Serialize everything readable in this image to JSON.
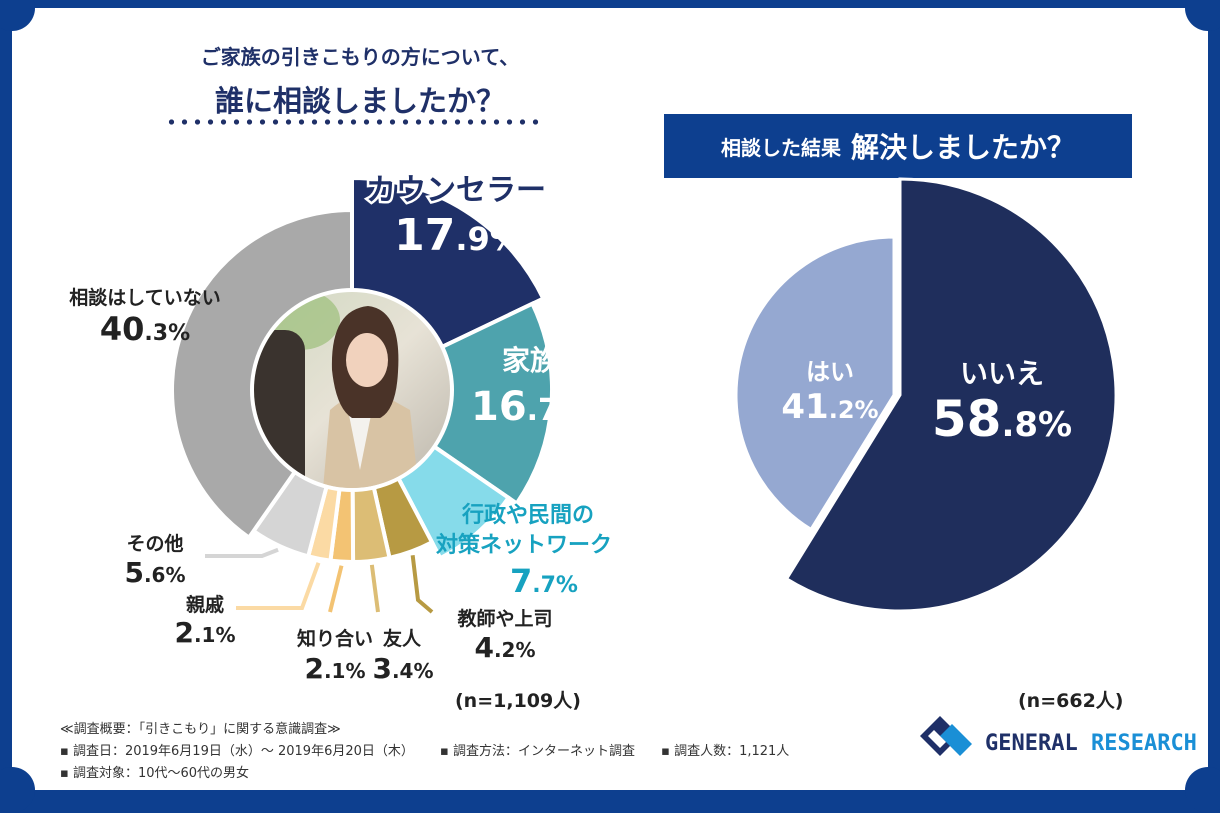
{
  "left_title": {
    "line1": "ご家族の引きこもりの方について、",
    "line2": "誰に相談しましたか？"
  },
  "right_title": {
    "small": "相談した結果",
    "big": "解決しましたか？"
  },
  "chart_data": [
    {
      "type": "pie",
      "style": "donut",
      "title": "ご家族の引きこもりの方について、誰に相談しましたか？",
      "n_label": "(n=1,109人)",
      "slices": [
        {
          "key": "counselor",
          "label": "カウンセラー",
          "value": 17.9,
          "value_label": "17.9%",
          "color": "#1f3068"
        },
        {
          "key": "family",
          "label": "家族",
          "value": 16.7,
          "value_label": "16.7%",
          "color": "#4ea3ad"
        },
        {
          "key": "gov",
          "label": "行政や民間の対策ネットワーク",
          "label_lines": [
            "行政や民間の",
            "対策ネットワーク"
          ],
          "value": 7.7,
          "value_label": "7.7%",
          "color": "#86dbea"
        },
        {
          "key": "teacher",
          "label": "教師や上司",
          "value": 4.2,
          "value_label": "4.2%",
          "color": "#b79a43"
        },
        {
          "key": "friend",
          "label": "友人",
          "value": 3.4,
          "value_label": "3.4%",
          "color": "#dcbd75"
        },
        {
          "key": "acquaint",
          "label": "知り合い",
          "value": 2.1,
          "value_label": "2.1%",
          "color": "#f3c373"
        },
        {
          "key": "relative",
          "label": "親戚",
          "value": 2.1,
          "value_label": "2.1%",
          "color": "#fbdaa4"
        },
        {
          "key": "other",
          "label": "その他",
          "value": 5.6,
          "value_label": "5.6%",
          "color": "#d5d5d5"
        },
        {
          "key": "none",
          "label": "相談はしていない",
          "value": 40.3,
          "value_label": "40.3%",
          "color": "#a9a9a9"
        }
      ]
    },
    {
      "type": "pie",
      "title": "相談した結果 解決しましたか？",
      "n_label": "(n=662人)",
      "slices": [
        {
          "key": "no",
          "label": "いいえ",
          "value": 58.8,
          "value_label": "58.8%",
          "color": "#1f2e5c"
        },
        {
          "key": "yes",
          "label": "はい",
          "value": 41.2,
          "value_label": "41.2%",
          "color": "#95a8d1"
        }
      ]
    }
  ],
  "notes": {
    "overview": "≪調査概要：「引きこもり」に関する意識調査≫",
    "date": "調査日：2019年6月19日（水）～ 2019年6月20日（木）",
    "method": "調査方法：インターネット調査",
    "count": "調査人数：1,121人",
    "target": "調査対象：10代～60代の男女"
  },
  "logo": {
    "text": "GENERAL RESEARCH",
    "word1": "GENERAL",
    "word2": "RESEARCH",
    "colors": {
      "dark": "#1f3068",
      "blue": "#1a8fd6"
    }
  },
  "colors": {
    "frame": "#0d3f8f",
    "navy": "#1f3068",
    "teal": "#4ea3ad",
    "cyan_text": "#17a2c0"
  }
}
